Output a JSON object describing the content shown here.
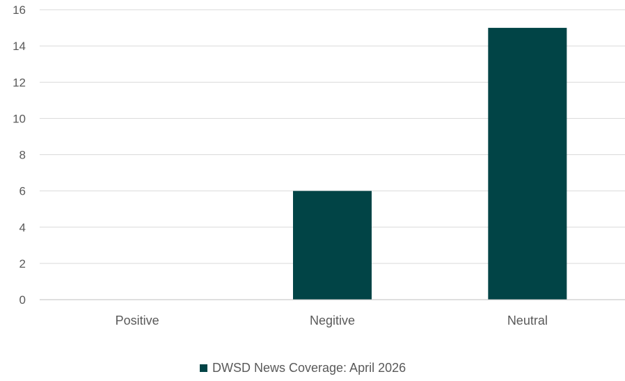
{
  "chart_data": {
    "type": "bar",
    "categories": [
      "Positive",
      "Negitive",
      "Neutral"
    ],
    "series": [
      {
        "name": "DWSD News Coverage: April 2026",
        "values": [
          0,
          6,
          15
        ]
      }
    ],
    "ylim": [
      0,
      16
    ],
    "yticks": [
      0,
      2,
      4,
      6,
      8,
      10,
      12,
      14,
      16
    ],
    "grid": true,
    "legend_position": "bottom",
    "colors": {
      "bar": "#014446",
      "grid": "#d9d9d9",
      "axis": "#bfbfbf",
      "text": "#595959"
    }
  }
}
